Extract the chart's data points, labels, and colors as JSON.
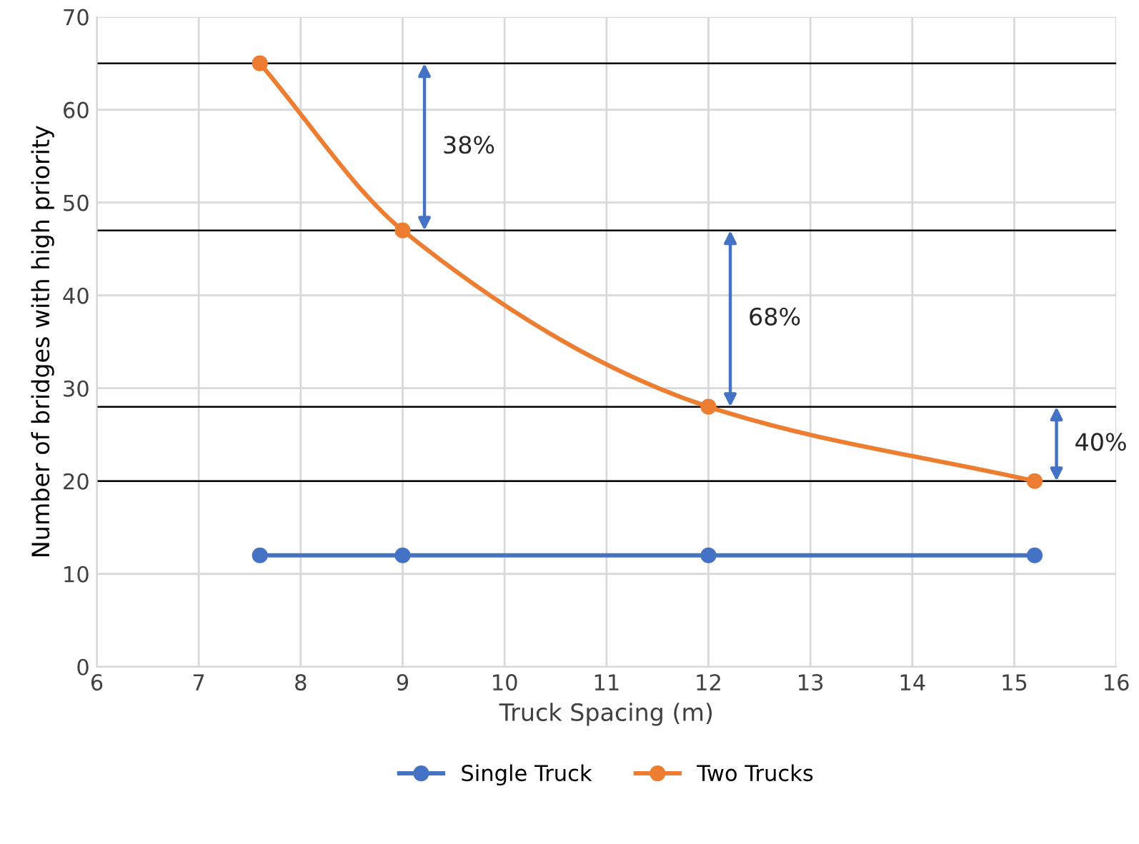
{
  "chart_data": {
    "type": "line",
    "xlabel": "Truck Spacing (m)",
    "ylabel": "Number of bridges with high priority",
    "series": [
      {
        "name": "Single Truck",
        "color": "#4472c4",
        "x": [
          7.6,
          9,
          12,
          15.2
        ],
        "values": [
          12,
          12,
          12,
          12
        ]
      },
      {
        "name": "Two Trucks",
        "color": "#ed7d31",
        "x": [
          7.6,
          9,
          12,
          15.2
        ],
        "values": [
          65,
          47,
          28,
          20
        ]
      }
    ],
    "xlim": [
      6,
      16
    ],
    "xticks": [
      6,
      7,
      8,
      9,
      10,
      11,
      12,
      13,
      14,
      15,
      16
    ],
    "ylim": [
      0,
      70
    ],
    "yticks": [
      0,
      10,
      20,
      30,
      40,
      50,
      60,
      70
    ],
    "ref_lines": [
      {
        "axis": "y",
        "value": 65,
        "label": null,
        "color": "#000000"
      },
      {
        "axis": "y",
        "value": 47,
        "label": null,
        "color": "#000000"
      },
      {
        "axis": "y",
        "value": 28,
        "label": null,
        "color": "#000000"
      },
      {
        "axis": "y",
        "value": 20,
        "label": null,
        "color": "#000000"
      }
    ],
    "annotations": [
      "38%",
      "68%",
      "40%"
    ],
    "grid": true,
    "legend": "bottom",
    "marker": "circle",
    "line_style": "solid"
  }
}
